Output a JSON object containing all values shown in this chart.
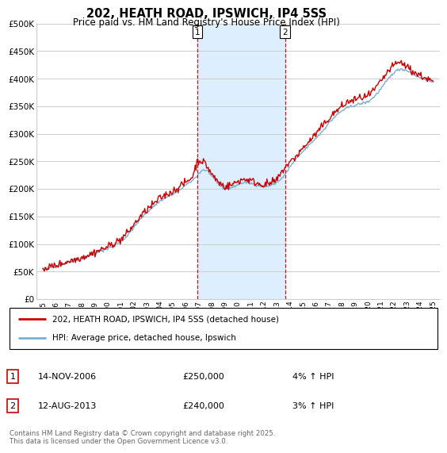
{
  "title": "202, HEATH ROAD, IPSWICH, IP4 5SS",
  "subtitle": "Price paid vs. HM Land Registry's House Price Index (HPI)",
  "legend_line1": "202, HEATH ROAD, IPSWICH, IP4 5SS (detached house)",
  "legend_line2": "HPI: Average price, detached house, Ipswich",
  "annotation1_label": "1",
  "annotation1_date": "14-NOV-2006",
  "annotation1_price": "£250,000",
  "annotation1_hpi": "4% ↑ HPI",
  "annotation1_year": 2006.87,
  "annotation2_label": "2",
  "annotation2_date": "12-AUG-2013",
  "annotation2_price": "£240,000",
  "annotation2_hpi": "3% ↑ HPI",
  "annotation2_year": 2013.62,
  "price_paid_color": "#cc0000",
  "hpi_color": "#7aafd4",
  "shaded_color": "#ddeeff",
  "vline_color": "#cc0000",
  "background_color": "#ffffff",
  "grid_color": "#cccccc",
  "ylim": [
    0,
    500000
  ],
  "yticks": [
    0,
    50000,
    100000,
    150000,
    200000,
    250000,
    300000,
    350000,
    400000,
    450000,
    500000
  ],
  "xlabel_start": 1995,
  "xlabel_end": 2025,
  "footer": "Contains HM Land Registry data © Crown copyright and database right 2025.\nThis data is licensed under the Open Government Licence v3.0."
}
